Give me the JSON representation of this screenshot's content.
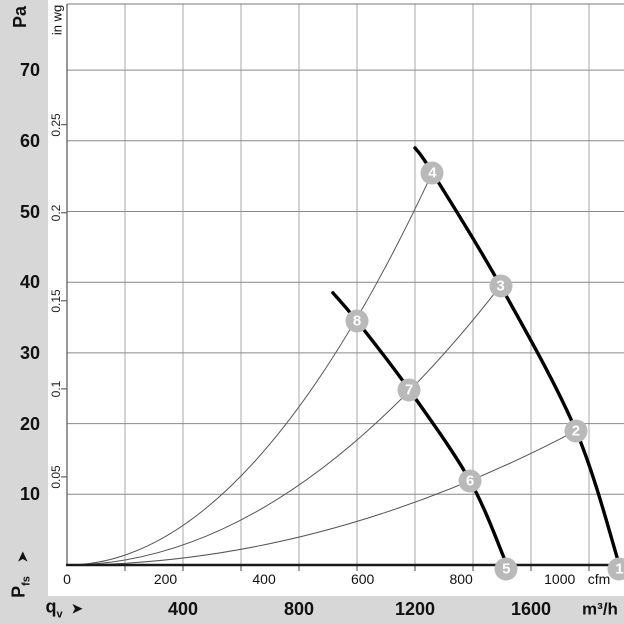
{
  "axes": {
    "pressure_unit": "Pa",
    "pressure_unit_secondary": "in wg",
    "pressure_symbol_main": "P",
    "pressure_symbol_sub": "fs",
    "flow_symbol_main": "q",
    "flow_symbol_sub": "v",
    "flow_unit_primary": "cfm",
    "flow_unit_secondary": "m³/h",
    "origin_label": "0",
    "arrow_glyph": "➤"
  },
  "colors": {
    "band_gray": "#d7d7d7",
    "marker_gray": "#b9b9b9",
    "marker_text": "#ffffff",
    "grid_horizontal": "#8a8a8a",
    "grid_vertical": "#a8a8a8",
    "plot_border": "#777777",
    "axis_black": "#1a1a1a",
    "thin_curve": "#555555",
    "thick_curve": "#000000"
  },
  "chart_data": {
    "type": "line",
    "title": "",
    "xlabel": "qv",
    "ylabel": "Pfs",
    "x_axis": {
      "unit_primary": {
        "name": "cfm",
        "ticks": [
          200,
          400,
          600,
          800,
          1000
        ]
      },
      "unit_secondary": {
        "name": "m³/h",
        "ticks": [
          400,
          800,
          1200,
          1600
        ]
      },
      "range_m3h": [
        0,
        1920
      ],
      "grid_step_m3h": 200,
      "m3h_per_cfm": 1.699
    },
    "y_axis": {
      "unit_primary": {
        "name": "Pa",
        "ticks": [
          70,
          60,
          50,
          40,
          30,
          20,
          10
        ]
      },
      "unit_secondary": {
        "name": "in wg",
        "ticks": [
          "0.25",
          "0.2",
          "0.15",
          "0.1",
          "0.05"
        ]
      },
      "range_pa": [
        0,
        79.4
      ],
      "grid_step_pa": 10,
      "pa_per_inwg": 249.089
    },
    "series": [
      {
        "name": "fan-curve-high-speed",
        "style": "thick",
        "points_m3h_pa": [
          [
            1200,
            59.0
          ],
          [
            1260,
            55.5
          ],
          [
            1495,
            39.5
          ],
          [
            1755,
            19.0
          ],
          [
            1905,
            0.0
          ]
        ]
      },
      {
        "name": "fan-curve-low-speed",
        "style": "thick",
        "points_m3h_pa": [
          [
            917,
            38.5
          ],
          [
            1000,
            34.5
          ],
          [
            1180,
            24.8
          ],
          [
            1390,
            11.9
          ],
          [
            1512,
            0.5
          ]
        ]
      },
      {
        "name": "system-curve-to-4",
        "style": "thin-parabola",
        "end_m3h_pa": [
          1260,
          55.5
        ]
      },
      {
        "name": "system-curve-to-3",
        "style": "thin-parabola",
        "end_m3h_pa": [
          1495,
          39.5
        ]
      },
      {
        "name": "system-curve-to-2",
        "style": "thin-parabola",
        "end_m3h_pa": [
          1755,
          19.0
        ]
      }
    ],
    "markers": [
      {
        "label": "1",
        "m3h": 1905,
        "pa": 0.0
      },
      {
        "label": "2",
        "m3h": 1755,
        "pa": 19.0
      },
      {
        "label": "3",
        "m3h": 1495,
        "pa": 39.5
      },
      {
        "label": "4",
        "m3h": 1260,
        "pa": 55.5
      },
      {
        "label": "5",
        "m3h": 1515,
        "pa": 0.0
      },
      {
        "label": "6",
        "m3h": 1390,
        "pa": 11.9
      },
      {
        "label": "7",
        "m3h": 1180,
        "pa": 24.8
      },
      {
        "label": "8",
        "m3h": 1000,
        "pa": 34.5
      }
    ]
  }
}
